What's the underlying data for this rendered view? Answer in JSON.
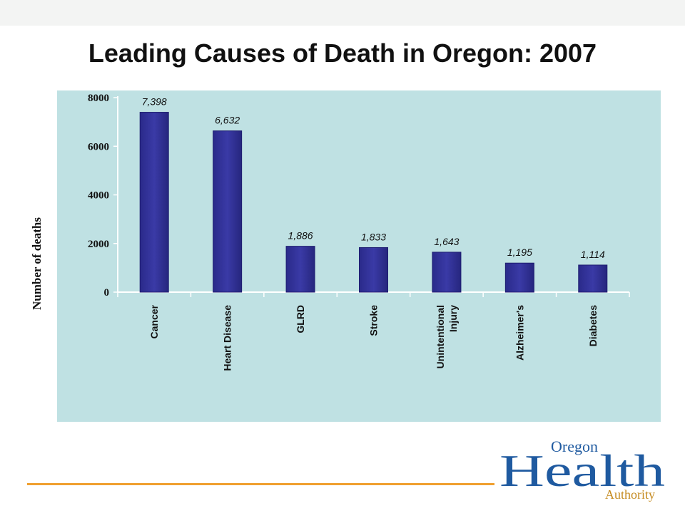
{
  "title": "Leading Causes of Death in Oregon:  2007",
  "chart_data": {
    "type": "bar",
    "title": "Leading Causes of Death in Oregon:  2007",
    "xlabel": "",
    "ylabel": "Number of deaths",
    "ylim": [
      0,
      8000
    ],
    "yticks": [
      "0",
      "2000",
      "4000",
      "6000",
      "8000"
    ],
    "categories": [
      [
        "Cancer"
      ],
      [
        "Heart Disease"
      ],
      [
        "GLRD"
      ],
      [
        "Stroke"
      ],
      [
        "Unintentional",
        "Injury"
      ],
      [
        "Alzheimer's"
      ],
      [
        "Diabetes"
      ]
    ],
    "values": [
      7398,
      6632,
      1886,
      1833,
      1643,
      1195,
      1114
    ],
    "data_labels": [
      "7,398",
      "6,632",
      "1,886",
      "1,833",
      "1,643",
      "1,195",
      "1,114"
    ],
    "bar_color": "#3a3aa6",
    "grid": false,
    "legend": "none"
  },
  "logo": {
    "line1": "Oregon",
    "main": "Health",
    "line3": "Authority"
  },
  "colors": {
    "panel": "#bfe1e3",
    "accent_line": "#f0a030",
    "logo_blue": "#1f5aa0",
    "logo_gold": "#c58a1e"
  }
}
